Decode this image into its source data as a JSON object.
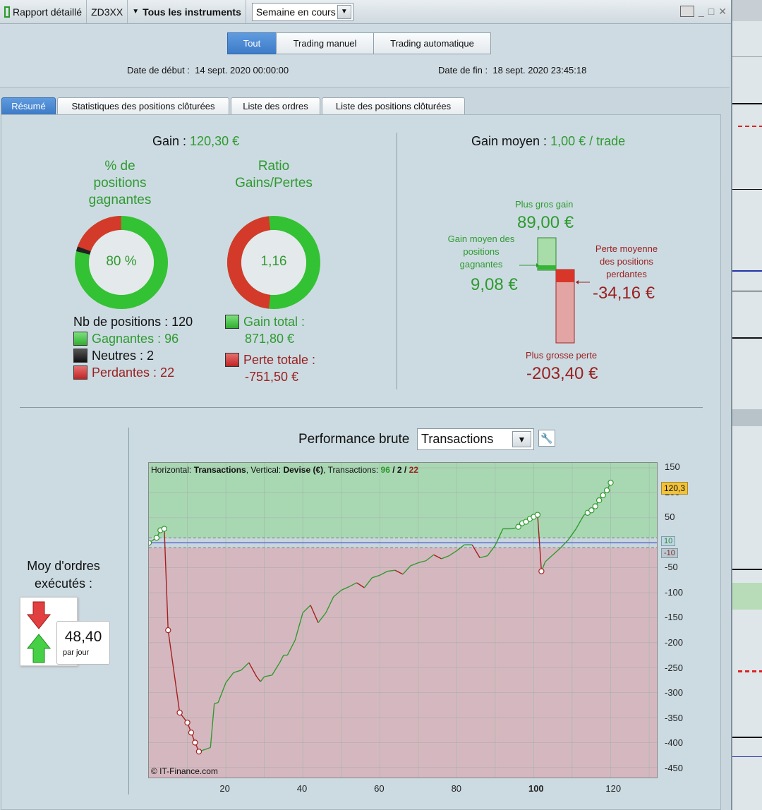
{
  "titlebar": {
    "report_label": "Rapport détaillé",
    "account": "ZD3XX",
    "instruments": "Tous les instruments",
    "period": "Semaine en cours",
    "win_controls": [
      "_",
      "□",
      "✕"
    ]
  },
  "modes": [
    "Tout",
    "Trading manuel",
    "Trading automatique"
  ],
  "active_mode": "Tout",
  "dates": {
    "start_label": "Date de début :",
    "start_value": "14 sept. 2020 00:00:00",
    "end_label": "Date de fin :",
    "end_value": "18 sept. 2020 23:45:18"
  },
  "tabs": [
    "Résumé",
    "Statistiques des positions clôturées",
    "Liste des ordres",
    "Liste des positions clôturées"
  ],
  "summary": {
    "gain_label": "Gain :",
    "gain_value": "120,30 €",
    "pct_title_1": "% de",
    "pct_title_2": "positions",
    "pct_title_3": "gagnantes",
    "pct_value": "80 %",
    "ratio_title_1": "Ratio",
    "ratio_title_2": "Gains/Pertes",
    "ratio_value": "1,16",
    "nb_label": "Nb de positions : 120",
    "winners_label": "Gagnantes : 96",
    "neutral_label": "Neutres : 2",
    "losers_label": "Perdantes : 22",
    "gain_total_label": "Gain total :",
    "gain_total_value": "871,80 €",
    "loss_total_label": "Perte totale :",
    "loss_total_value": "-751,50 €",
    "avg_gain_label": "Gain moyen :",
    "avg_gain_value": "1,00 € / trade",
    "biggest_gain_label": "Plus gros gain",
    "biggest_gain_value": "89,00 €",
    "avg_win_label_1": "Gain moyen des",
    "avg_win_label_2": "positions",
    "avg_win_label_3": "gagnantes",
    "avg_win_value": "9,08 €",
    "avg_loss_label_1": "Perte moyenne",
    "avg_loss_label_2": "des positions",
    "avg_loss_label_3": "perdantes",
    "avg_loss_value": "-34,16 €",
    "biggest_loss_label": "Plus grosse perte",
    "biggest_loss_value": "-203,40 €"
  },
  "colors": {
    "gain": "#2f9a2f",
    "loss": "#9a1f1f",
    "accent": "#3d7bc8"
  },
  "orders": {
    "label_1": "Moy d'ordres",
    "label_2": "exécutés :",
    "value": "48,40",
    "unit": "par jour"
  },
  "performance": {
    "title": "Performance brute",
    "dropdown": "Transactions",
    "header_h": "Horizontal:",
    "header_h_val": "Transactions",
    "header_v": ", Vertical:",
    "header_v_val": "Devise (€)",
    "header_t": ", Transactions:",
    "tx_win": "96",
    "tx_sep1": " / ",
    "tx_neutral": "2",
    "tx_sep2": " / ",
    "tx_loss": "22",
    "copyright": "© IT-Finance.com",
    "last_value_label": "120,3",
    "upper_threshold_label": "10",
    "lower_threshold_label": "-10"
  },
  "chart_data": {
    "type": "line",
    "title": "Performance brute",
    "xlabel": "Transactions",
    "ylabel": "Devise (€)",
    "xlim": [
      0,
      132
    ],
    "ylim": [
      -470,
      160
    ],
    "thresholds": [
      10,
      -10
    ],
    "xticks": [
      20,
      40,
      60,
      80,
      100,
      120
    ],
    "yticks": [
      150,
      100,
      50,
      -50,
      -100,
      -150,
      -200,
      -250,
      -300,
      -350,
      -400,
      -450
    ],
    "x": [
      0,
      2,
      3,
      4,
      5,
      8,
      10,
      11,
      12,
      13,
      16,
      17,
      18,
      20,
      22,
      24,
      26,
      28,
      29,
      30,
      32,
      34,
      35,
      36,
      38,
      40,
      42,
      44,
      46,
      48,
      50,
      52,
      54,
      56,
      58,
      60,
      62,
      64,
      66,
      68,
      70,
      72,
      74,
      76,
      78,
      80,
      82,
      84,
      86,
      88,
      90,
      92,
      94,
      95,
      96,
      97,
      98,
      99,
      100,
      101,
      102,
      103,
      105,
      107,
      109,
      111,
      113,
      114,
      115,
      116,
      117,
      118,
      119,
      120
    ],
    "y": [
      0,
      10,
      25,
      28,
      -175,
      -340,
      -360,
      -380,
      -400,
      -418,
      -410,
      -322,
      -320,
      -280,
      -260,
      -255,
      -240,
      -268,
      -278,
      -268,
      -265,
      -240,
      -225,
      -225,
      -195,
      -140,
      -125,
      -160,
      -140,
      -108,
      -95,
      -88,
      -80,
      -90,
      -70,
      -65,
      -57,
      -55,
      -63,
      -46,
      -40,
      -36,
      -24,
      -32,
      -26,
      -16,
      -4,
      -4,
      -30,
      -26,
      -5,
      28,
      28,
      29,
      32,
      39,
      42,
      48,
      52,
      56,
      -57,
      -38,
      -24,
      -10,
      6,
      28,
      55,
      60,
      65,
      73,
      85,
      95,
      105,
      120.3
    ],
    "markers_x": [
      0,
      2,
      3,
      4,
      5,
      8,
      10,
      11,
      12,
      13,
      96,
      97,
      98,
      99,
      100,
      101,
      102,
      114,
      115,
      116,
      117,
      118,
      119,
      120
    ]
  }
}
